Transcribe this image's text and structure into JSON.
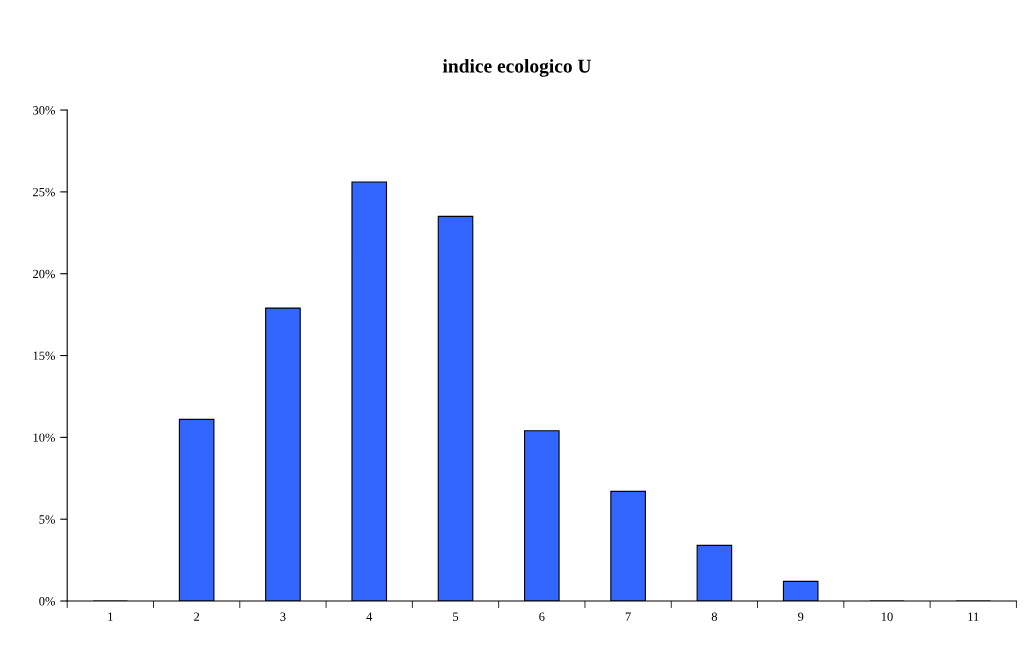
{
  "chart_data": {
    "type": "bar",
    "title": "indice ecologico U",
    "categories": [
      "1",
      "2",
      "3",
      "4",
      "5",
      "6",
      "7",
      "8",
      "9",
      "10",
      "11"
    ],
    "values": [
      0,
      11.1,
      17.9,
      25.6,
      23.5,
      10.4,
      6.7,
      3.4,
      1.2,
      0,
      0
    ],
    "color": "#3366ff",
    "ylim": [
      0,
      30
    ],
    "yticks": [
      {
        "value": 0,
        "label": "0%"
      },
      {
        "value": 5,
        "label": "5%"
      },
      {
        "value": 10,
        "label": "10%"
      },
      {
        "value": 15,
        "label": "15%"
      },
      {
        "value": 20,
        "label": "20%"
      },
      {
        "value": 25,
        "label": "25%"
      },
      {
        "value": 30,
        "label": "30%"
      }
    ],
    "grid": false,
    "legend": false
  }
}
